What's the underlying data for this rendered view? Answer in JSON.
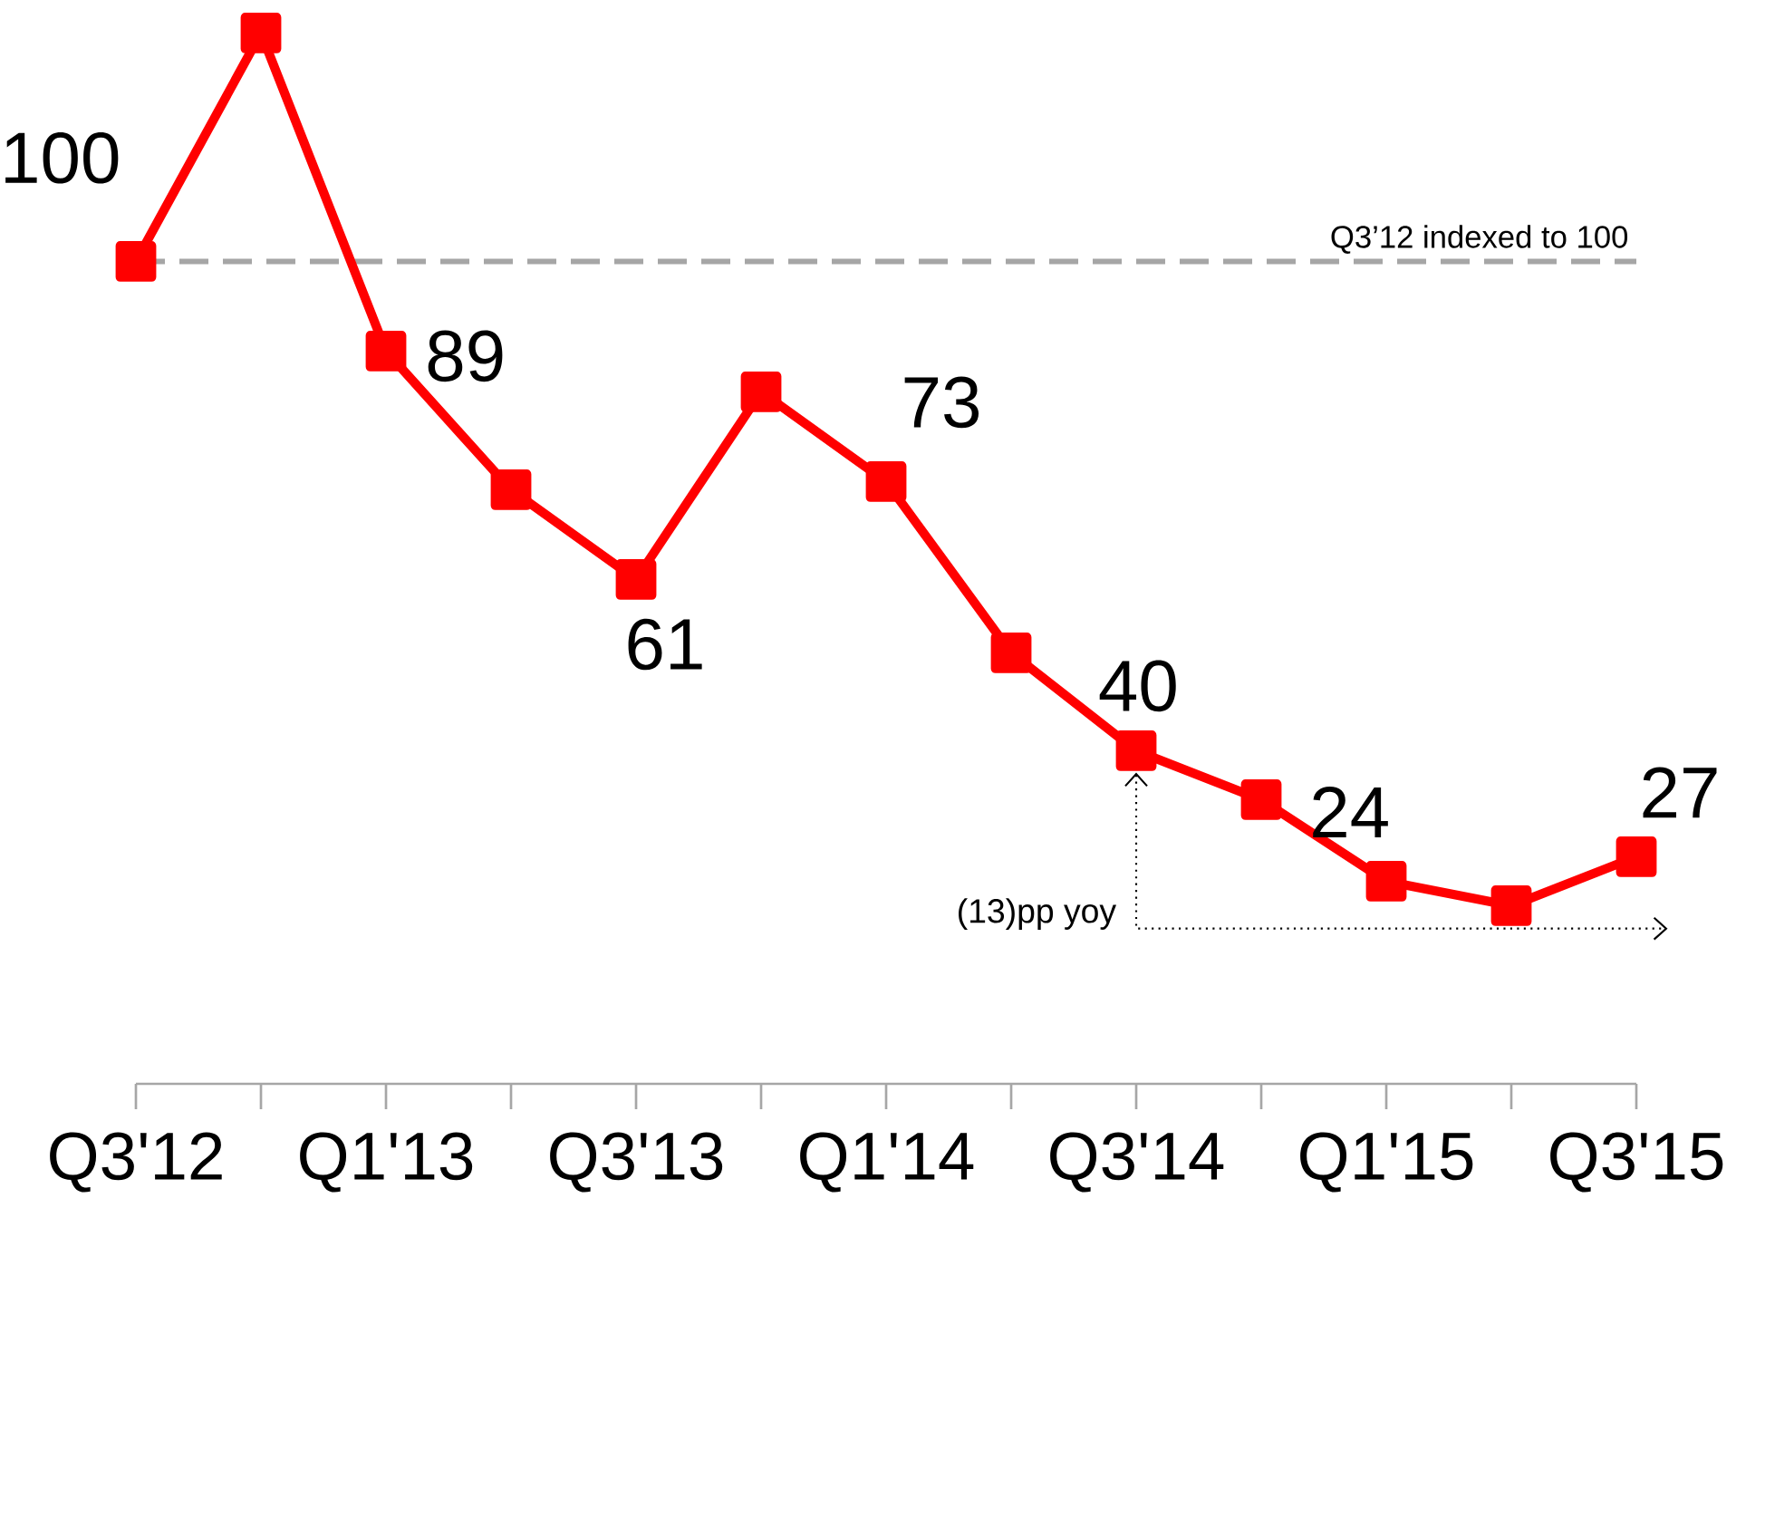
{
  "chart_data": {
    "type": "line",
    "categories": [
      "Q3'12",
      null,
      "Q1'13",
      null,
      "Q3'13",
      null,
      "Q1'14",
      null,
      "Q3'14",
      null,
      "Q1'15",
      null,
      "Q3'15"
    ],
    "series": [
      {
        "color": "#ff0000",
        "values": [
          100,
          128,
          89,
          72,
          61,
          84,
          73,
          52,
          40,
          34,
          24,
          21,
          27
        ],
        "value_labels": [
          "100",
          null,
          "89",
          null,
          "61",
          null,
          "73",
          null,
          "40",
          null,
          "24",
          null,
          "27"
        ]
      }
    ],
    "marker": "square",
    "line_style": "solid",
    "tick_labels": "x",
    "ref_lines": [
      {
        "axis": "y",
        "value": 100,
        "label": "Q3’12 indexed to 100",
        "color": "#a6a6a6",
        "line_style": "dashed"
      }
    ],
    "annotations": [
      "(13)pp yoy"
    ]
  }
}
